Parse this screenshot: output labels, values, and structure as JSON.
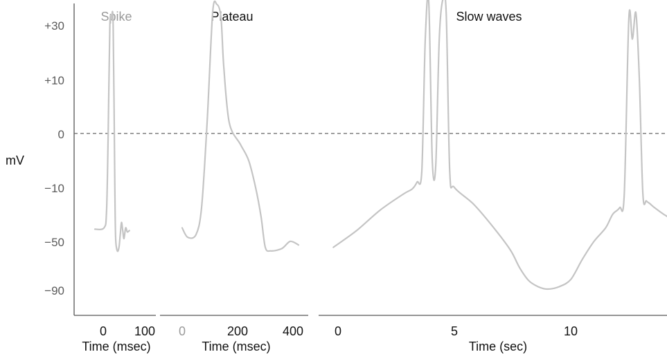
{
  "chart_data": {
    "type": "line",
    "ylabel": "mV",
    "yticks": [
      "+30",
      "+10",
      "0",
      "−10",
      "−50",
      "−90"
    ],
    "zero_line_mV": 0,
    "panels": [
      {
        "id": "spike",
        "title": "Spike",
        "xlabel": "Time (msec)",
        "xticks": [
          {
            "label": "0",
            "value": 0
          },
          {
            "label": "100",
            "value": 100
          }
        ],
        "series": [
          {
            "x": [
              -20,
              2,
              8,
              12,
              16,
              20,
              24,
              28,
              30,
              34,
              38,
              41,
              44,
              47,
              50,
              54,
              58,
              63
            ],
            "y": [
              -41,
              -40,
              -28,
              0,
              30,
              38,
              30,
              -10,
              -48,
              -58,
              -55,
              -45,
              -36,
              -42,
              -48,
              -40,
              -43,
              -42
            ]
          }
        ]
      },
      {
        "id": "plateau",
        "title": "Plateau",
        "xlabel": "Time (msec)",
        "xticks": [
          {
            "label": "0",
            "value": 0
          },
          {
            "label": "200",
            "value": 200
          },
          {
            "label": "400",
            "value": 400
          }
        ],
        "series": [
          {
            "x": [
              0,
              20,
              50,
              70,
              90,
              110,
              125,
              140,
              150,
              170,
              210,
              240,
              265,
              285,
              300,
              320,
              360,
              390,
              420
            ],
            "y": [
              -40,
              -47,
              -45,
              -25,
              2,
              45,
              55,
              40,
              15,
              2,
              -2,
              -5,
              -10,
              -32,
              -55,
              -58,
              -56,
              -50,
              -53
            ]
          }
        ]
      },
      {
        "id": "slow-waves",
        "title": "Slow waves",
        "xlabel": "Time (sec)",
        "xticks": [
          {
            "label": "0",
            "value": 0
          },
          {
            "label": "5",
            "value": 5
          },
          {
            "label": "10",
            "value": 10
          }
        ],
        "series": [
          {
            "x": [
              -0.2,
              0.8,
              1.8,
              2.8,
              3.2,
              3.4,
              3.6,
              3.75,
              3.9,
              4.05,
              4.2,
              4.35,
              4.5,
              4.65,
              4.8,
              5.0,
              5.8,
              6.6,
              7.4,
              7.8,
              8.2,
              8.6,
              9.0,
              9.5,
              10.0,
              10.5,
              11.0,
              11.5,
              11.8,
              12.1,
              12.3,
              12.5,
              12.65,
              12.8,
              12.95,
              13.1,
              13.25,
              13.4,
              13.6,
              14.0,
              14.5
            ],
            "y": [
              -55,
              -42,
              -27,
              -15,
              -11,
              -9,
              -7,
              25,
              58,
              -5,
              -6,
              25,
              62,
              45,
              -7,
              -10,
              -22,
              -38,
              -57,
              -72,
              -83,
              -88,
              -90,
              -88,
              -82,
              -65,
              -50,
              -40,
              -30,
              -25,
              -15,
              40,
              25,
              45,
              10,
              -15,
              -20,
              -22,
              -25,
              -30,
              -35
            ]
          }
        ]
      }
    ]
  }
}
